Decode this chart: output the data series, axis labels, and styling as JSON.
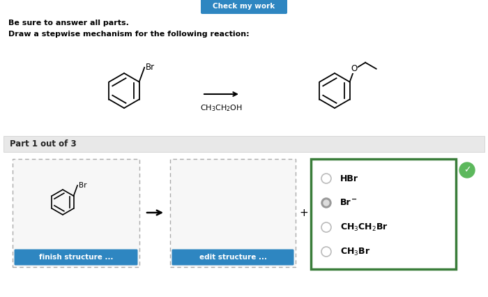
{
  "bg_color": "#ffffff",
  "top_button_color": "#2e86c1",
  "top_button_text": "Check my work",
  "top_button_text_color": "#ffffff",
  "line1": "Be sure to answer all parts.",
  "line2": "Draw a stepwise mechanism for the following reaction:",
  "part_bar_color": "#e8e8e8",
  "part_bar_text": "Part 1 out of 3",
  "finish_btn_color": "#2e86c1",
  "finish_btn_text": "finish structure ...",
  "edit_btn_color": "#2e86c1",
  "edit_btn_text": "edit structure ...",
  "radio_options": [
    "HBr",
    "Br⁻",
    "CH₃CH₂Br",
    "CH₃Br"
  ],
  "selected_option": 1,
  "green_check_color": "#5cb85c",
  "option_box_border": "#3a7d3a",
  "dashed_box_border": "#aaaaaa"
}
